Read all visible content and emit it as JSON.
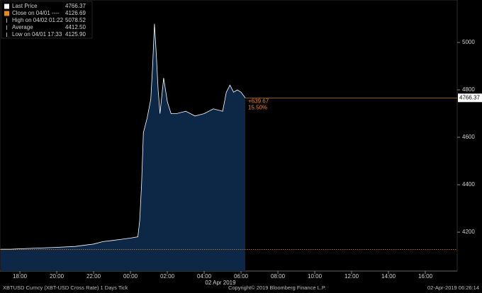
{
  "chart_data": {
    "type": "area",
    "x": [
      -1.05,
      -0.5,
      0,
      1,
      2,
      3,
      4,
      4.5,
      5,
      5.5,
      6,
      6.4,
      6.5,
      6.6,
      6.7,
      6.9,
      7.0,
      7.1,
      7.2,
      7.3,
      7.4,
      7.5,
      7.6,
      7.8,
      8.0,
      8.2,
      8.5,
      9.0,
      9.5,
      10.0,
      10.5,
      11.0,
      11.2,
      11.4,
      11.6,
      11.8,
      12.0,
      12.23
    ],
    "series": [
      {
        "name": "Last Price",
        "color": "#ffffff",
        "fill": "#0d2747",
        "values": [
          4128,
          4128,
          4130,
          4133,
          4136,
          4140,
          4150,
          4160,
          4165,
          4170,
          4175,
          4180,
          4250,
          4400,
          4620,
          4680,
          4720,
          4760,
          4900,
          5078.52,
          4950,
          4800,
          4700,
          4850,
          4750,
          4700,
          4700,
          4710,
          4690,
          4700,
          4720,
          4710,
          4790,
          4820,
          4790,
          4800,
          4790,
          4766.37
        ]
      }
    ],
    "close": 4126.69,
    "close_color": "#e8891c",
    "legend_stats": [
      {
        "label": "Last Price",
        "value": "4766.37",
        "color": "#ffffff"
      },
      {
        "label": "Close on 04/01 ----",
        "value": "4126.69",
        "color": "#e8891c"
      },
      {
        "label": "High on 04/02 01:22",
        "value": "5078.52"
      },
      {
        "label": "Average",
        "value": "4412.50"
      },
      {
        "label": "Low on 04/01 17:33",
        "value": "4125.90"
      }
    ],
    "annotations": [
      "+639.67",
      "15.50%"
    ],
    "date_label": "02 Apr 2019",
    "xlim": [
      -1.08,
      23.73
    ],
    "ylim": [
      4036,
      5179
    ],
    "yticks": [
      4200,
      4400,
      4600,
      4800,
      5000
    ],
    "xticks": [
      {
        "value": 0,
        "label": "18:00"
      },
      {
        "value": 2,
        "label": "20:00"
      },
      {
        "value": 4,
        "label": "22:00"
      },
      {
        "value": 6,
        "label": "00:00"
      },
      {
        "value": 8,
        "label": "02:00"
      },
      {
        "value": 10,
        "label": "04:00"
      },
      {
        "value": 12,
        "label": "06:00"
      },
      {
        "value": 14,
        "label": "08:00"
      },
      {
        "value": 16,
        "label": "10:00"
      },
      {
        "value": 18,
        "label": "12:00"
      },
      {
        "value": 20,
        "label": "14:00"
      },
      {
        "value": 22,
        "label": "16:00"
      }
    ],
    "footer": [
      "XBTUSD Curncy (XBT-USD Cross Rate) 1 Days  Tick",
      "Copyright© 2019 Bloomberg Finance L.P.",
      "02-Apr-2019 06:26:14"
    ]
  }
}
